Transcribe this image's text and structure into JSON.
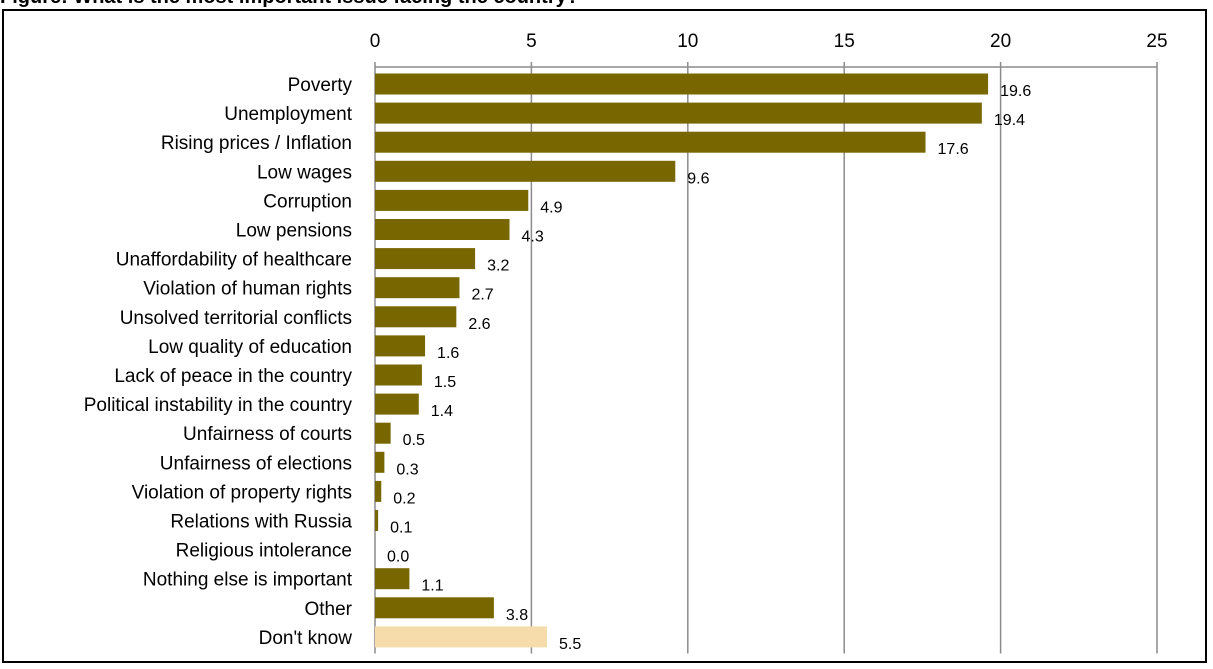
{
  "page": {
    "title": "Figure: What is the most important issue facing the country?"
  },
  "chart_data": {
    "type": "bar",
    "orientation": "horizontal",
    "xlim": [
      0,
      25
    ],
    "x_ticks": [
      0,
      5,
      10,
      15,
      20,
      25
    ],
    "grid": true,
    "legend": "none",
    "categories": [
      "Poverty",
      "Unemployment",
      "Rising prices / Inflation",
      "Low wages",
      "Corruption",
      "Low pensions",
      "Unaffordability of healthcare",
      "Violation of human rights",
      "Unsolved territorial conflicts",
      "Low quality of education",
      "Lack of peace in the country",
      "Political instability in the country",
      "Unfairness of courts",
      "Unfairness of elections",
      "Violation of property rights",
      "Relations with Russia",
      "Religious intolerance",
      "Nothing else is important",
      "Other",
      "Don't know"
    ],
    "values": [
      19.6,
      19.4,
      17.6,
      9.6,
      4.9,
      4.3,
      3.2,
      2.7,
      2.6,
      1.6,
      1.5,
      1.4,
      0.5,
      0.3,
      0.2,
      0.1,
      0.0,
      1.1,
      3.8,
      5.5
    ],
    "value_labels": [
      "19.6",
      "19.4",
      "17.6",
      "9.6",
      "4.9",
      "4.3",
      "3.2",
      "2.7",
      "2.6",
      "1.6",
      "1.5",
      "1.4",
      "0.5",
      "0.3",
      "0.2",
      "0.1",
      "0.0",
      "1.1",
      "3.8",
      "5.5"
    ],
    "bar_color": "#786600",
    "highlight_color": "#f5dcaa",
    "highlight_category": "Don't know",
    "grid_color": "#8c8c8c"
  }
}
